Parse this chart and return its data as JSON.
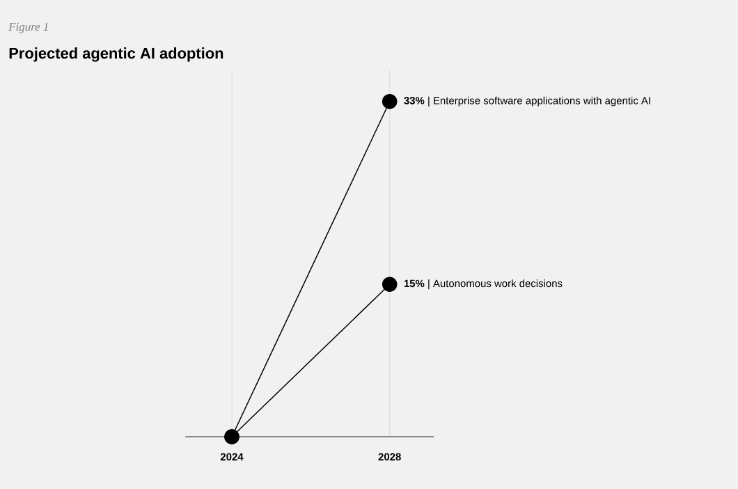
{
  "chart_data": {
    "type": "line",
    "title": "Projected agentic AI adoption",
    "annotations": [
      "Figure 1"
    ],
    "categories": [
      "2024",
      "2028"
    ],
    "grid": "x",
    "marker": "circle",
    "series": [
      {
        "name": "Enterprise software applications with agentic AI",
        "color": "#000000",
        "values": [
          0,
          33
        ],
        "value_labels": [
          null,
          "**33%** |"
        ]
      },
      {
        "name": "Autonomous work decisions",
        "color": "#000000",
        "values": [
          0,
          15
        ],
        "value_labels": [
          null,
          "**15%** |"
        ]
      }
    ]
  }
}
